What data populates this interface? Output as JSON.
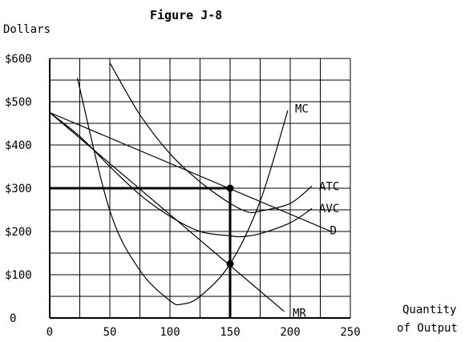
{
  "chart_data": {
    "type": "line",
    "title": "Figure J-8",
    "ylabel": "Dollars",
    "xlabel_lines": [
      "Quantity",
      "of Output"
    ],
    "xlim": [
      0,
      250
    ],
    "ylim": [
      0,
      600
    ],
    "x_grid_step": 25,
    "y_grid_step": 50,
    "x_ticks": [
      0,
      50,
      100,
      150,
      200,
      250
    ],
    "x_tick_labels": [
      "0",
      "50",
      "100",
      "150",
      "200",
      "250"
    ],
    "y_ticks": [
      0,
      100,
      200,
      300,
      400,
      500,
      600
    ],
    "y_tick_labels": [
      "0",
      "$100",
      "$200",
      "$300",
      "$400",
      "$500",
      "$600"
    ],
    "grid": true,
    "series": [
      {
        "name": "MC",
        "label_at": [
          204,
          484
        ],
        "x": [
          23,
          50,
          75,
          100,
          110,
          125,
          150,
          175,
          198
        ],
        "y": [
          555,
          248,
          110,
          40,
          32,
          50,
          125,
          270,
          480
        ]
      },
      {
        "name": "ATC",
        "label_at": [
          224,
          305
        ],
        "x": [
          50,
          75,
          100,
          125,
          150,
          165,
          175,
          200,
          218
        ],
        "y": [
          590,
          470,
          380,
          315,
          265,
          245,
          247,
          265,
          305
        ]
      },
      {
        "name": "AVC",
        "label_at": [
          224,
          254
        ],
        "x": [
          0,
          25,
          50,
          75,
          100,
          125,
          150,
          160,
          175,
          200,
          218
        ],
        "y": [
          475,
          420,
          350,
          285,
          235,
          200,
          190,
          188,
          195,
          220,
          253
        ]
      },
      {
        "name": "D",
        "label_at": [
          233,
          203
        ],
        "x": [
          0,
          234
        ],
        "y": [
          475,
          200
        ]
      },
      {
        "name": "MR",
        "label_at": [
          202,
          12
        ],
        "x": [
          0,
          195
        ],
        "y": [
          475,
          15
        ]
      }
    ],
    "points": [
      [
        150,
        300
      ],
      [
        150,
        125
      ]
    ],
    "reference_lines": {
      "horizontal_y": 300,
      "vertical_x": 150
    }
  }
}
